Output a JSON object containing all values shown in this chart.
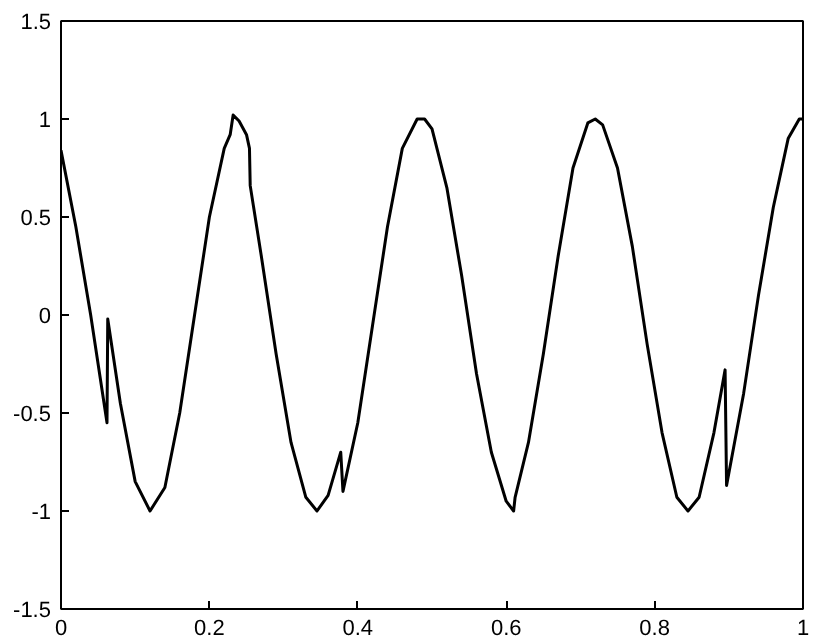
{
  "chart_data": {
    "type": "line",
    "x": [
      0,
      0.02,
      0.04,
      0.062,
      0.063,
      0.08,
      0.1,
      0.12,
      0.14,
      0.16,
      0.18,
      0.2,
      0.22,
      0.228,
      0.232,
      0.24,
      0.25,
      0.254,
      0.255,
      0.27,
      0.29,
      0.31,
      0.33,
      0.345,
      0.36,
      0.377,
      0.38,
      0.4,
      0.42,
      0.44,
      0.46,
      0.48,
      0.49,
      0.5,
      0.52,
      0.54,
      0.56,
      0.58,
      0.6,
      0.61,
      0.612,
      0.63,
      0.65,
      0.67,
      0.69,
      0.71,
      0.72,
      0.73,
      0.75,
      0.77,
      0.79,
      0.81,
      0.83,
      0.845,
      0.86,
      0.88,
      0.895,
      0.897,
      0.92,
      0.94,
      0.96,
      0.98,
      0.995,
      1.0
    ],
    "series": [
      {
        "color": "#000000",
        "values": [
          0.84,
          0.45,
          0.0,
          -0.55,
          -0.02,
          -0.45,
          -0.85,
          -1.0,
          -0.88,
          -0.5,
          0.0,
          0.5,
          0.85,
          0.92,
          1.02,
          0.99,
          0.92,
          0.85,
          0.66,
          0.3,
          -0.2,
          -0.65,
          -0.93,
          -1.0,
          -0.92,
          -0.7,
          -0.9,
          -0.55,
          -0.05,
          0.45,
          0.85,
          1.0,
          1.0,
          0.95,
          0.65,
          0.2,
          -0.3,
          -0.7,
          -0.95,
          -1.0,
          -0.93,
          -0.65,
          -0.2,
          0.3,
          0.75,
          0.98,
          1.0,
          0.97,
          0.75,
          0.35,
          -0.15,
          -0.6,
          -0.93,
          -1.0,
          -0.93,
          -0.6,
          -0.28,
          -0.87,
          -0.4,
          0.1,
          0.55,
          0.9,
          1.0,
          1.0
        ]
      }
    ],
    "xlim": [
      0,
      1
    ],
    "ylim": [
      -1.5,
      1.5
    ],
    "xticks": [
      0,
      0.2,
      0.4,
      0.6,
      0.8,
      1
    ],
    "yticks": [
      -1.5,
      -1,
      -0.5,
      0,
      0.5,
      1,
      1.5
    ],
    "grid": false,
    "marker": "none",
    "line_style": "solid"
  }
}
